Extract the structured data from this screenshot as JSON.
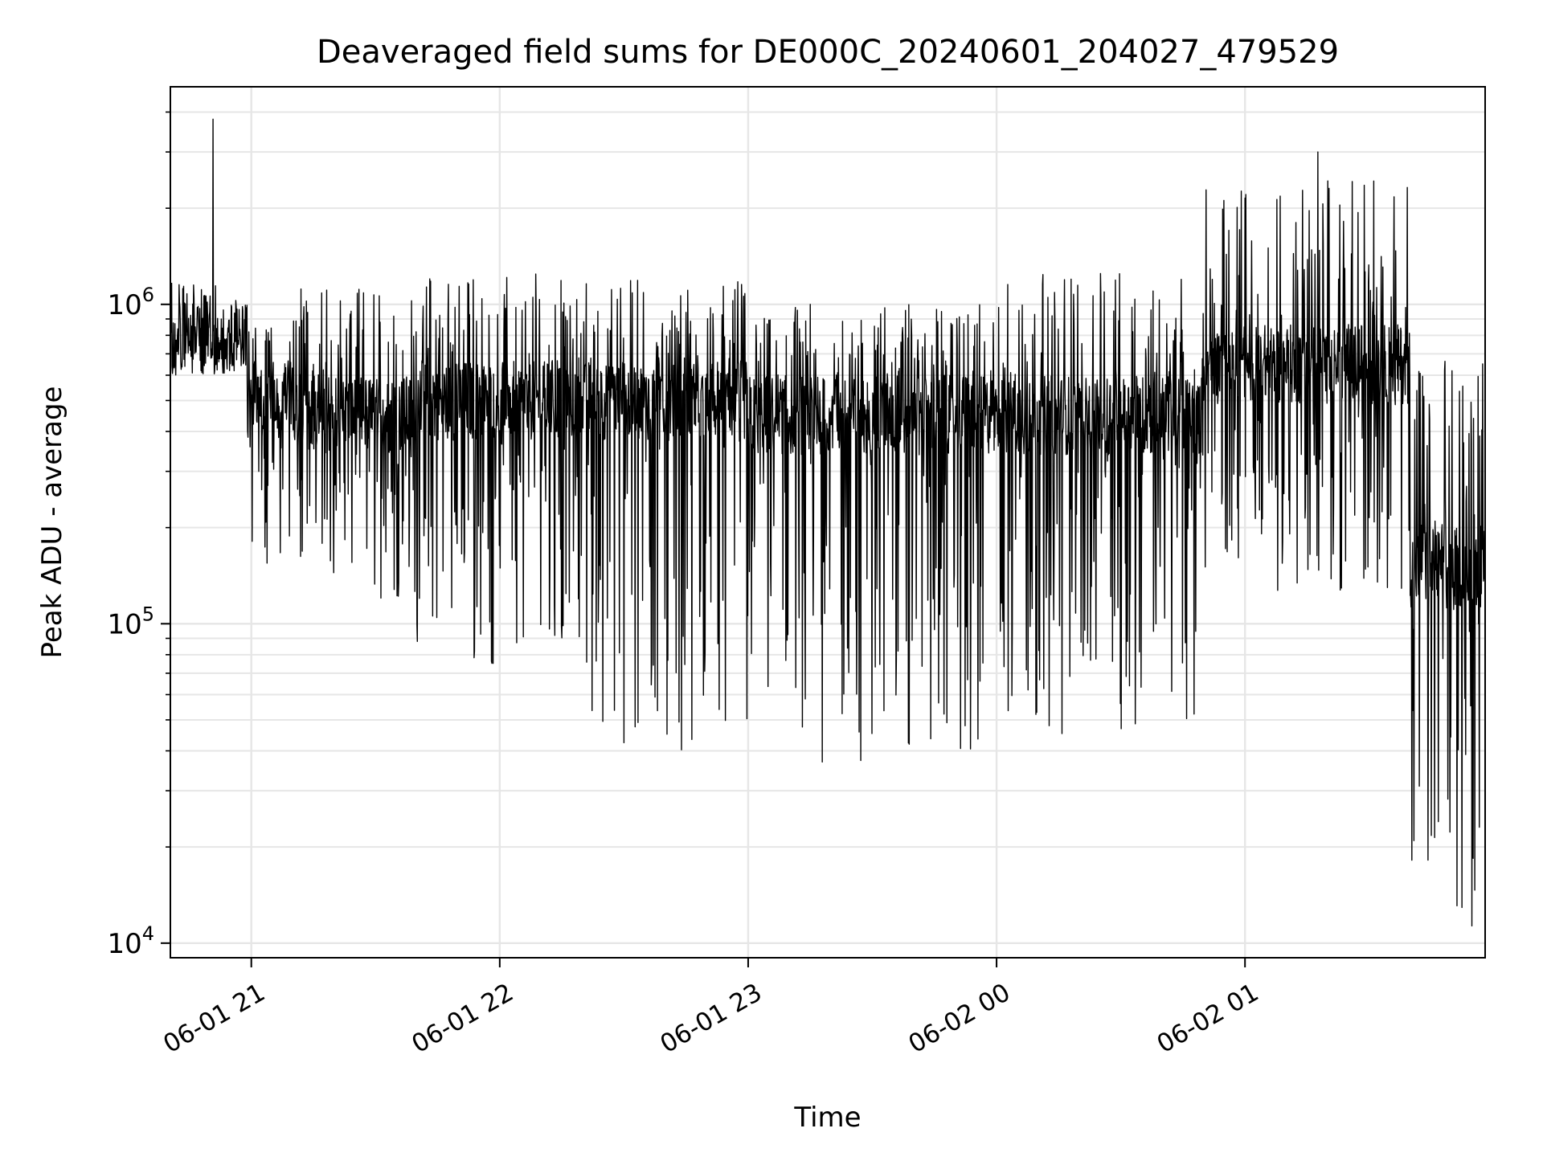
{
  "chart_data": {
    "type": "line",
    "title": "Deaveraged field sums for DE000C_20240601_204027_479529",
    "xlabel": "Time",
    "ylabel": "Peak ADU - average",
    "yscale": "log",
    "ylim": [
      9000,
      4800000
    ],
    "xlim": [
      "2024-06-01 20:40:27",
      "2024-06-02 01:58:00"
    ],
    "x_ticks": [
      "2024-06-01 21:00",
      "2024-06-01 22:00",
      "2024-06-01 23:00",
      "2024-06-02 00:00",
      "2024-06-02 01:00"
    ],
    "x_tick_labels": [
      "06-01 21",
      "06-01 22",
      "06-01 23",
      "06-02 00",
      "06-02 01"
    ],
    "y_ticks": [
      10000,
      100000,
      1000000
    ],
    "y_tick_labels": [
      {
        "base": "10",
        "exp": "4"
      },
      {
        "base": "10",
        "exp": "5"
      },
      {
        "base": "10",
        "exp": "6"
      }
    ],
    "grid": true,
    "line_color": "#000000",
    "grid_color": "#e6e6e6",
    "series": [
      {
        "sample_interval_min": 0.1,
        "envelope_note": "dense trace; values are per-interval approximate envelope",
        "segments": [
          {
            "x": [
              "2024-06-01 20:40:27",
              "2024-06-01 20:59:00"
            ],
            "upper": 1200000,
            "base": 800000,
            "lower": 600000,
            "spike": 3800000
          },
          {
            "x": [
              "2024-06-01 20:59:00",
              "2024-06-01 21:10:00"
            ],
            "upper": 900000,
            "base": 500000,
            "lower": 150000
          },
          {
            "x": [
              "2024-06-01 21:10:00",
              "2024-06-01 21:40:00"
            ],
            "upper": 1200000,
            "base": 450000,
            "lower": 120000
          },
          {
            "x": [
              "2024-06-01 21:40:00",
              "2024-06-01 22:20:00"
            ],
            "upper": 1250000,
            "base": 500000,
            "lower": 70000
          },
          {
            "x": [
              "2024-06-01 22:20:00",
              "2024-06-01 23:00:00"
            ],
            "upper": 1200000,
            "base": 500000,
            "lower": 40000
          },
          {
            "x": [
              "2024-06-01 23:00:00",
              "2024-06-02 00:00:00"
            ],
            "upper": 1000000,
            "base": 450000,
            "lower": 35000
          },
          {
            "x": [
              "2024-06-02 00:00:00",
              "2024-06-02 00:50:00"
            ],
            "upper": 1250000,
            "base": 450000,
            "lower": 45000
          },
          {
            "x": [
              "2024-06-02 00:50:00",
              "2024-06-02 01:40:00"
            ],
            "upper": 2500000,
            "base": 650000,
            "lower": 120000,
            "spike": 3000000
          },
          {
            "x": [
              "2024-06-02 01:40:00",
              "2024-06-02 01:58:00"
            ],
            "upper": 700000,
            "base": 150000,
            "lower": 11000
          }
        ]
      }
    ]
  }
}
